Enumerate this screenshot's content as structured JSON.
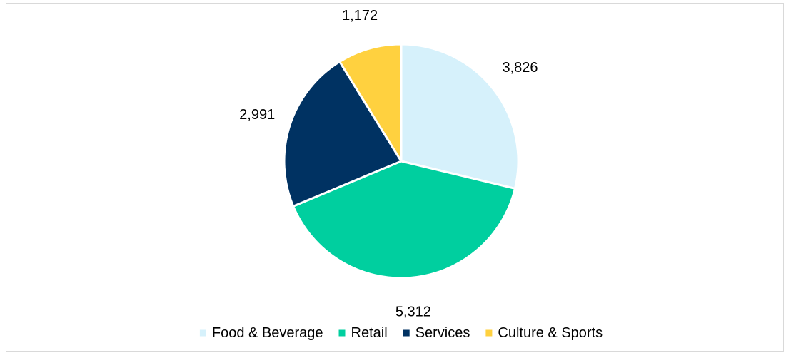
{
  "chart_data": {
    "type": "pie",
    "title": "",
    "categories": [
      "Food & Beverage",
      "Retail",
      "Services",
      "Culture & Sports"
    ],
    "values": [
      3826,
      5312,
      2991,
      1172
    ],
    "value_labels": [
      "3,826",
      "5,312",
      "2,991",
      "1,172"
    ],
    "colors": [
      "#d6f1fb",
      "#00cf9f",
      "#003262",
      "#ffd13f"
    ],
    "legend_position": "bottom",
    "start_angle": "12 o'clock",
    "direction": "clockwise"
  }
}
